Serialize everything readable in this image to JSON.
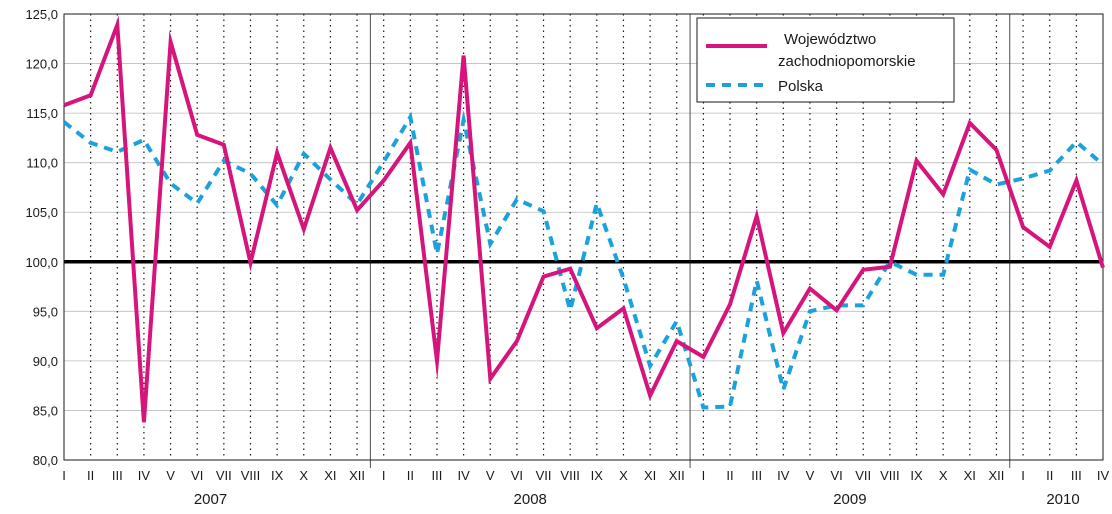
{
  "chart_data": {
    "type": "line",
    "title": "",
    "xlabel": "",
    "ylabel": "",
    "ylim": [
      80,
      125
    ],
    "yticks": [
      "80,0",
      "85,0",
      "90,0",
      "95,0",
      "100,0",
      "105,0",
      "110,0",
      "115,0",
      "120,0",
      "125,0"
    ],
    "reference_line": 100,
    "grid": "dotted vertical per month, solid vertical between years",
    "legend_position": "top-right",
    "colors": {
      "wojewodztwo": "#d6157c",
      "polska": "#1ba1dc",
      "reference": "#000000"
    },
    "categories": [
      "I",
      "II",
      "III",
      "IV",
      "V",
      "VI",
      "VII",
      "VIII",
      "IX",
      "X",
      "XI",
      "XII",
      "I",
      "II",
      "III",
      "IV",
      "V",
      "VI",
      "VII",
      "VIII",
      "IX",
      "X",
      "XI",
      "XII",
      "I",
      "II",
      "III",
      "IV",
      "V",
      "VI",
      "VII",
      "VIII",
      "IX",
      "X",
      "XI",
      "XII",
      "I",
      "II",
      "III",
      "IV"
    ],
    "years": [
      {
        "label": "2007",
        "start": 0,
        "end": 11
      },
      {
        "label": "2008",
        "start": 12,
        "end": 23
      },
      {
        "label": "2009",
        "start": 24,
        "end": 35
      },
      {
        "label": "2010",
        "start": 36,
        "end": 39
      }
    ],
    "series": [
      {
        "name": "Województwo zachodniopomorskie",
        "style": "solid",
        "values": [
          115.8,
          116.8,
          123.9,
          83.8,
          122.2,
          112.8,
          111.8,
          99.9,
          111.0,
          103.3,
          111.5,
          105.2,
          108.2,
          112.0,
          90.0,
          120.8,
          88.2,
          92.0,
          98.5,
          99.3,
          93.3,
          95.3,
          86.5,
          92.0,
          90.4,
          95.7,
          104.6,
          92.8,
          97.3,
          95.1,
          99.2,
          99.5,
          110.2,
          106.8,
          114.0,
          111.3,
          103.5,
          101.5,
          108.2,
          99.4
        ]
      },
      {
        "name": "Polska",
        "style": "dashed",
        "values": [
          114.1,
          112.0,
          111.1,
          112.3,
          107.9,
          105.9,
          110.2,
          108.9,
          105.7,
          110.9,
          108.3,
          105.8,
          110.1,
          114.6,
          100.8,
          114.3,
          101.8,
          106.3,
          105.1,
          95.1,
          105.9,
          98.3,
          89.5,
          94.0,
          85.3,
          85.4,
          98.1,
          87.1,
          95.0,
          95.6,
          95.6,
          100.0,
          98.7,
          98.7,
          109.3,
          107.8,
          108.4,
          109.2,
          112.1,
          109.8
        ]
      }
    ],
    "legend": [
      {
        "line1": "Województwo",
        "line2": "zachodniopomorskie"
      },
      {
        "line1": "Polska",
        "line2": ""
      }
    ]
  }
}
